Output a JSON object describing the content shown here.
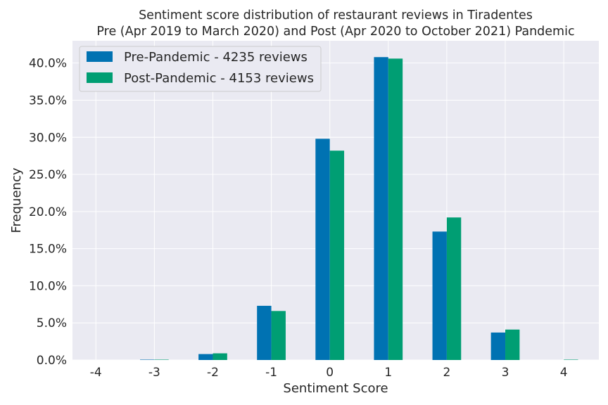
{
  "chart_data": {
    "type": "bar",
    "title": "Sentiment score distribution of restaurant reviews in Tiradentes",
    "subtitle": "Pre (Apr 2019 to March 2020) and Post (Apr 2020 to October 2021) Pandemic",
    "xlabel": "Sentiment Score",
    "ylabel": "Frequency",
    "categories": [
      "-4",
      "-3",
      "-2",
      "-1",
      "0",
      "1",
      "2",
      "3",
      "4"
    ],
    "x": [
      -4,
      -3,
      -2,
      -1,
      0,
      1,
      2,
      3,
      4
    ],
    "series": [
      {
        "name": "Pre-Pandemic - 4235 reviews",
        "color": "#0072b2",
        "values": [
          0.0,
          0.05,
          0.8,
          7.3,
          29.8,
          40.8,
          17.3,
          3.7,
          0.0
        ]
      },
      {
        "name": "Post-Pandemic - 4153 reviews",
        "color": "#009e73",
        "values": [
          0.0,
          0.05,
          0.9,
          6.6,
          28.2,
          40.6,
          19.2,
          4.1,
          0.05
        ]
      }
    ],
    "ylim": [
      0,
      43
    ],
    "yticks": [
      0,
      5,
      10,
      15,
      20,
      25,
      30,
      35,
      40
    ],
    "ytick_labels": [
      "0.0%",
      "5.0%",
      "10.0%",
      "15.0%",
      "20.0%",
      "25.0%",
      "30.0%",
      "35.0%",
      "40.0%"
    ],
    "xlim": [
      -4.4,
      4.6
    ],
    "grid": true,
    "legend_position": "top-left",
    "background_color": "#eaeaf2",
    "grid_color": "#ffffff"
  }
}
